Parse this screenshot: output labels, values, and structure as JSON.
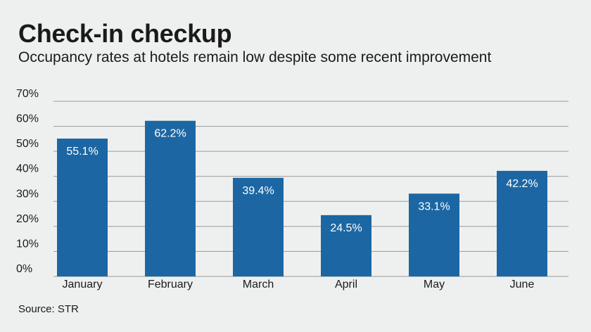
{
  "header": {
    "title": "Check-in checkup",
    "subtitle": "Occupancy rates at hotels remain low despite some recent improvement"
  },
  "footer": {
    "source": "Source: STR"
  },
  "colors": {
    "bar": "#1c67a3",
    "gridline": "#9a9a9a",
    "background": "#eef0ef"
  },
  "chart_data": {
    "type": "bar",
    "categories": [
      "January",
      "February",
      "March",
      "April",
      "May",
      "June"
    ],
    "values": [
      55.1,
      62.2,
      39.4,
      24.5,
      33.1,
      42.2
    ],
    "data_labels": [
      "55.1%",
      "62.2%",
      "39.4%",
      "24.5%",
      "33.1%",
      "42.2%"
    ],
    "ylim": [
      0,
      70
    ],
    "yticks": [
      0,
      10,
      20,
      30,
      40,
      50,
      60,
      70
    ],
    "ytick_labels": [
      "0%",
      "10%",
      "20%",
      "30%",
      "40%",
      "50%",
      "60%",
      "70%"
    ],
    "grid": true,
    "legend": "none"
  }
}
